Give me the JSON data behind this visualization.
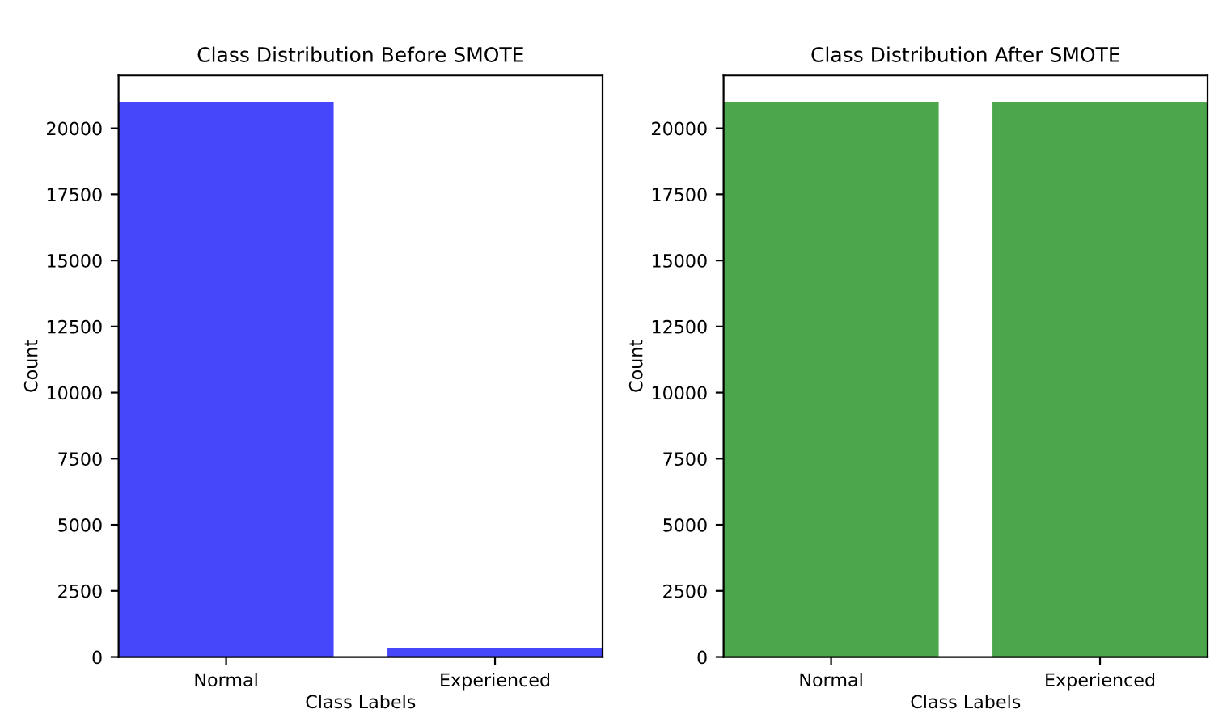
{
  "chart_data": [
    {
      "type": "bar",
      "title": "Class Distribution Before SMOTE",
      "xlabel": "Class Labels",
      "ylabel": "Count",
      "categories": [
        "Normal",
        "Experienced"
      ],
      "values": [
        21000,
        350
      ],
      "color": "#4646fb",
      "ylim": [
        0,
        22000
      ],
      "yticks": [
        0,
        2500,
        5000,
        7500,
        10000,
        12500,
        15000,
        17500,
        20000
      ],
      "grid": false,
      "legend": false
    },
    {
      "type": "bar",
      "title": "Class Distribution After SMOTE",
      "xlabel": "Class Labels",
      "ylabel": "Count",
      "categories": [
        "Normal",
        "Experienced"
      ],
      "values": [
        21000,
        21000
      ],
      "color": "#4ca64c",
      "ylim": [
        0,
        22000
      ],
      "yticks": [
        0,
        2500,
        5000,
        7500,
        10000,
        12500,
        15000,
        17500,
        20000
      ],
      "grid": false,
      "legend": false
    }
  ]
}
